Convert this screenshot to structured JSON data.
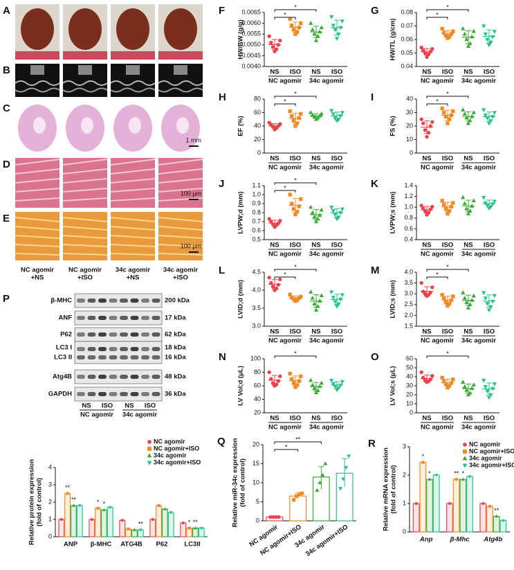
{
  "figure": {
    "image_panels": {
      "letters": [
        "A",
        "B",
        "C",
        "D",
        "E"
      ],
      "scale_bars": [
        "1 mm",
        "100 μm",
        "100 μm"
      ],
      "columns": [
        [
          "NC agomir",
          "+NS"
        ],
        [
          "NC agomir",
          "+ISO"
        ],
        [
          "34c agomir",
          "+NS"
        ],
        [
          "34c agomir",
          "+ISO"
        ]
      ]
    },
    "blot": {
      "letter": "P",
      "rows": [
        {
          "label": "β-MHC",
          "size": "200 kDa"
        },
        {
          "label": "ANF",
          "size": "17 kDa"
        },
        {
          "label": "P62",
          "size": "62 kDa"
        },
        {
          "label": "LC3 I",
          "size": "18 kDa"
        },
        {
          "label": "LC3 II",
          "size": "16 kDa"
        },
        {
          "label": "Atg4B",
          "size": "48 kDa"
        },
        {
          "label": "GAPDH",
          "size": "36 kDa"
        }
      ]
    },
    "groups": {
      "sub": [
        "NS",
        "ISO",
        "NS",
        "ISO"
      ],
      "agomir": [
        "NC agomir",
        "34c agomir"
      ]
    },
    "colors": [
      "#e8434c",
      "#f08a24",
      "#3aaa35",
      "#26c28e"
    ]
  },
  "chart_data": [
    {
      "type": "dot",
      "letter": "F",
      "ylabel": "HW/BW (g/g)",
      "ylim": [
        0.004,
        0.0065
      ],
      "yticks": [
        {
          "value": 0.004,
          "label": "0.0040"
        },
        0.0045,
        {
          "value": 0.005,
          "label": "0.0050"
        },
        0.0055,
        {
          "value": 0.006,
          "label": "0.0060"
        },
        0.0065
      ],
      "groups": [
        [
          0.0047,
          0.0048,
          0.0049,
          0.005,
          0.0051,
          0.0052,
          0.0054
        ],
        [
          0.0055,
          0.0056,
          0.0057,
          0.0058,
          0.0059,
          0.006,
          0.0062
        ],
        [
          0.0052,
          0.0054,
          0.0055,
          0.0056,
          0.0057,
          0.0058,
          0.006
        ],
        [
          0.0053,
          0.0055,
          0.0057,
          0.0058,
          0.0059,
          0.0061,
          0.0063
        ]
      ],
      "sig": [
        {
          "pair": [
            0,
            2
          ],
          "label": "*"
        },
        {
          "pair": [
            0,
            1
          ],
          "label": "*"
        }
      ]
    },
    {
      "type": "dot",
      "letter": "G",
      "ylabel": "HW/TL (g/cm)",
      "ylim": [
        0.04,
        0.08
      ],
      "yticks": [
        0.04,
        0.05,
        0.06,
        0.07,
        0.08
      ],
      "groups": [
        [
          0.047,
          0.049,
          0.05,
          0.051,
          0.052,
          0.053,
          0.054
        ],
        [
          0.061,
          0.062,
          0.063,
          0.064,
          0.065,
          0.066,
          0.068
        ],
        [
          0.055,
          0.057,
          0.06,
          0.062,
          0.064,
          0.066,
          0.068
        ],
        [
          0.056,
          0.058,
          0.06,
          0.062,
          0.064,
          0.066,
          0.07
        ]
      ],
      "sig": [
        {
          "pair": [
            0,
            2
          ],
          "label": "*"
        },
        {
          "pair": [
            0,
            1
          ],
          "label": "*"
        }
      ]
    },
    {
      "type": "dot",
      "letter": "H",
      "ylabel": "EF (%)",
      "ylim": [
        0,
        80
      ],
      "yticks": [
        0,
        20,
        40,
        60,
        80
      ],
      "groups": [
        [
          35,
          37,
          39,
          40,
          42,
          43,
          45
        ],
        [
          40,
          44,
          48,
          52,
          55,
          58,
          62
        ],
        [
          50,
          52,
          54,
          55,
          56,
          58,
          60
        ],
        [
          48,
          50,
          52,
          55,
          58,
          60,
          63
        ]
      ],
      "sig": [
        {
          "pair": [
            0,
            2
          ],
          "label": "*"
        },
        {
          "pair": [
            0,
            1
          ],
          "label": "*"
        }
      ]
    },
    {
      "type": "dot",
      "letter": "I",
      "ylabel": "FS (%)",
      "ylim": [
        0,
        40
      ],
      "yticks": [
        0,
        10,
        20,
        30,
        40
      ],
      "groups": [
        [
          12,
          15,
          17,
          20,
          22,
          23,
          25
        ],
        [
          22,
          25,
          27,
          28,
          30,
          31,
          33
        ],
        [
          22,
          24,
          26,
          27,
          29,
          30,
          32
        ],
        [
          22,
          24,
          26,
          27,
          28,
          30,
          32
        ]
      ],
      "sig": [
        {
          "pair": [
            0,
            2
          ],
          "label": "*"
        },
        {
          "pair": [
            0,
            1
          ],
          "label": "*"
        }
      ]
    },
    {
      "type": "dot",
      "letter": "J",
      "ylabel": "LVPW;d (mm)",
      "ylim": [
        0.5,
        1.1
      ],
      "yticks": [
        0.5,
        0.6,
        0.7,
        0.8,
        0.9,
        {
          "value": 1,
          "label": "1.0"
        },
        1.1
      ],
      "groups": [
        [
          0.64,
          0.66,
          0.67,
          0.68,
          0.7,
          0.71,
          0.73
        ],
        [
          0.78,
          0.81,
          0.84,
          0.87,
          0.9,
          0.95,
          1.0
        ],
        [
          0.7,
          0.73,
          0.75,
          0.77,
          0.8,
          0.83,
          0.86
        ],
        [
          0.73,
          0.75,
          0.78,
          0.8,
          0.82,
          0.84,
          0.86
        ]
      ],
      "sig": [
        {
          "pair": [
            0,
            2
          ],
          "label": "*"
        },
        {
          "pair": [
            0,
            1
          ],
          "label": "*"
        }
      ]
    },
    {
      "type": "dot",
      "letter": "K",
      "ylabel": "LVPW;s (mm)",
      "ylim": [
        0.4,
        1.4
      ],
      "yticks": [
        0.4,
        0.6,
        0.8,
        {
          "value": 1,
          "label": "1.0"
        },
        1.2,
        1.4
      ],
      "groups": [
        [
          0.86,
          0.9,
          0.93,
          0.96,
          0.98,
          1.01,
          1.03
        ],
        [
          0.88,
          0.93,
          0.97,
          1.01,
          1.05,
          1.08,
          1.12
        ],
        [
          0.88,
          0.93,
          0.97,
          1.02,
          1.07,
          1.12,
          1.18
        ],
        [
          0.98,
          1.01,
          1.04,
          1.06,
          1.08,
          1.11,
          1.18
        ]
      ],
      "sig": []
    },
    {
      "type": "dot",
      "letter": "L",
      "ylabel": "LVID;d (mm)",
      "ylim": [
        3,
        4.5
      ],
      "yticks": [
        {
          "value": 3,
          "label": "3.0"
        },
        3.5,
        {
          "value": 4,
          "label": "4.0"
        },
        4.5
      ],
      "groups": [
        [
          4.0,
          4.05,
          4.1,
          4.15,
          4.2,
          4.3,
          4.35
        ],
        [
          3.7,
          3.72,
          3.75,
          3.78,
          3.8,
          3.82,
          3.88
        ],
        [
          3.45,
          3.55,
          3.62,
          3.7,
          3.78,
          3.85,
          3.95
        ],
        [
          3.55,
          3.62,
          3.68,
          3.75,
          3.8,
          3.87,
          3.95
        ]
      ],
      "sig": [
        {
          "pair": [
            0,
            2
          ],
          "label": "*"
        },
        {
          "pair": [
            0,
            1
          ],
          "label": "*"
        }
      ]
    },
    {
      "type": "dot",
      "letter": "M",
      "ylabel": "LVID;s (mm)",
      "ylim": [
        1.5,
        4
      ],
      "yticks": [
        1.5,
        {
          "value": 2,
          "label": "2.0"
        },
        2.5,
        {
          "value": 3,
          "label": "3.0"
        },
        3.5,
        {
          "value": 4,
          "label": "4.0"
        }
      ],
      "groups": [
        [
          2.9,
          2.95,
          3.0,
          3.05,
          3.1,
          3.3,
          3.5
        ],
        [
          2.45,
          2.55,
          2.62,
          2.7,
          2.8,
          2.88,
          2.95
        ],
        [
          2.35,
          2.5,
          2.6,
          2.7,
          2.8,
          2.9,
          3.05
        ],
        [
          2.25,
          2.4,
          2.55,
          2.65,
          2.8,
          2.92,
          3.05
        ]
      ],
      "sig": [
        {
          "pair": [
            0,
            2
          ],
          "label": "*"
        },
        {
          "pair": [
            0,
            1
          ],
          "label": "*"
        }
      ]
    },
    {
      "type": "dot",
      "letter": "N",
      "ylabel": "LV Vol;d (μL)",
      "ylim": [
        20,
        100
      ],
      "yticks": [
        20,
        40,
        60,
        80,
        100
      ],
      "groups": [
        [
          60,
          62,
          64,
          67,
          70,
          74,
          80
        ],
        [
          58,
          61,
          64,
          67,
          70,
          74,
          78
        ],
        [
          50,
          53,
          56,
          59,
          61,
          64,
          68
        ],
        [
          54,
          57,
          59,
          61,
          63,
          66,
          68
        ]
      ],
      "sig": [
        {
          "pair": [
            0,
            2
          ],
          "label": "*"
        }
      ]
    },
    {
      "type": "dot",
      "letter": "O",
      "ylabel": "LV Vol;s (μL)",
      "ylim": [
        0,
        60
      ],
      "yticks": [
        0,
        10,
        20,
        30,
        40,
        50,
        60
      ],
      "groups": [
        [
          34,
          35,
          36,
          37,
          39,
          41,
          45
        ],
        [
          28,
          30,
          32,
          33,
          35,
          37,
          39
        ],
        [
          20,
          22,
          25,
          27,
          29,
          31,
          34
        ],
        [
          17,
          20,
          24,
          27,
          29,
          32,
          36
        ]
      ],
      "sig": [
        {
          "pair": [
            0,
            2
          ],
          "label": "*"
        }
      ]
    },
    {
      "type": "grouped-bar",
      "ylabel": [
        "Relative protein expression",
        "(fold of control)"
      ],
      "ylim": [
        0,
        4
      ],
      "yticks": [
        0,
        1,
        2,
        3,
        4
      ],
      "categories": [
        "ANP",
        "β-MHC",
        "ATG4B",
        "P62",
        "LC3II"
      ],
      "legend": "top-right",
      "italic": false,
      "series": [
        {
          "name": "NC agomir",
          "values": [
            1,
            1,
            0.95,
            1,
            0.8
          ]
        },
        {
          "name": "NC agomir+ISO",
          "values": [
            2.5,
            1.65,
            0.45,
            1.8,
            0.5
          ]
        },
        {
          "name": "34c agomir",
          "values": [
            1.8,
            1.55,
            0.4,
            1.6,
            0.5
          ]
        },
        {
          "name": "34c agomir+ISO",
          "values": [
            1.8,
            1.7,
            0.4,
            1.4,
            0.5
          ]
        }
      ],
      "stars": [
        {
          "at": [
            0,
            1
          ],
          "label": "**"
        },
        {
          "at": [
            0,
            2
          ],
          "label": "**"
        },
        {
          "at": [
            1,
            1
          ],
          "label": "*"
        },
        {
          "at": [
            1,
            2
          ],
          "label": "*"
        },
        {
          "at": [
            2,
            3
          ],
          "label": "**"
        },
        {
          "at": [
            4,
            1
          ],
          "label": "*"
        },
        {
          "at": [
            4,
            2
          ],
          "label": "**"
        }
      ]
    },
    {
      "type": "bar-points",
      "letter": "Q",
      "ylabel": [
        "Relative miR-34c expression",
        "(fold of control)"
      ],
      "ylim": [
        0,
        20
      ],
      "yticks": [
        0,
        5,
        10,
        15,
        20
      ],
      "categories": [
        "NC agomir",
        "NC agomir+ISO",
        "34c agomir",
        "34c agomir+ISO"
      ],
      "values": [
        1,
        6.5,
        11.5,
        12.5
      ],
      "points": [
        [
          1,
          1,
          1,
          1
        ],
        [
          5.5,
          6.5,
          7,
          7.2
        ],
        [
          8,
          10,
          12,
          15
        ],
        [
          8.5,
          11,
          14,
          17
        ]
      ],
      "sig": [
        {
          "pair": [
            0,
            2
          ],
          "label": "**"
        },
        {
          "pair": [
            0,
            1
          ],
          "label": "*"
        }
      ]
    },
    {
      "type": "grouped-bar",
      "letter": "R",
      "ylabel": [
        "Relative mRNA expression",
        "(fold of control)"
      ],
      "ylim": [
        0,
        3
      ],
      "yticks": [
        0,
        1,
        2,
        3
      ],
      "categories": [
        "Anp",
        "β-Mhc",
        "Atg4b"
      ],
      "legend": "top-right",
      "italic": true,
      "series": [
        {
          "name": "NC agomir",
          "values": [
            1,
            1,
            1
          ]
        },
        {
          "name": "NC agomir+ISO",
          "values": [
            2.45,
            1.85,
            0.9
          ]
        },
        {
          "name": "34c agomir",
          "values": [
            1.85,
            1.85,
            0.55
          ]
        },
        {
          "name": "34c agomir+ISO",
          "values": [
            2.0,
            1.95,
            0.4
          ]
        }
      ],
      "stars": [
        {
          "at": [
            0,
            1
          ],
          "label": "*"
        },
        {
          "at": [
            0,
            2
          ],
          "label": "*"
        },
        {
          "at": [
            1,
            1
          ],
          "label": "**"
        },
        {
          "at": [
            1,
            2
          ],
          "label": "*"
        },
        {
          "at": [
            2,
            2
          ],
          "label": "**"
        }
      ]
    }
  ]
}
